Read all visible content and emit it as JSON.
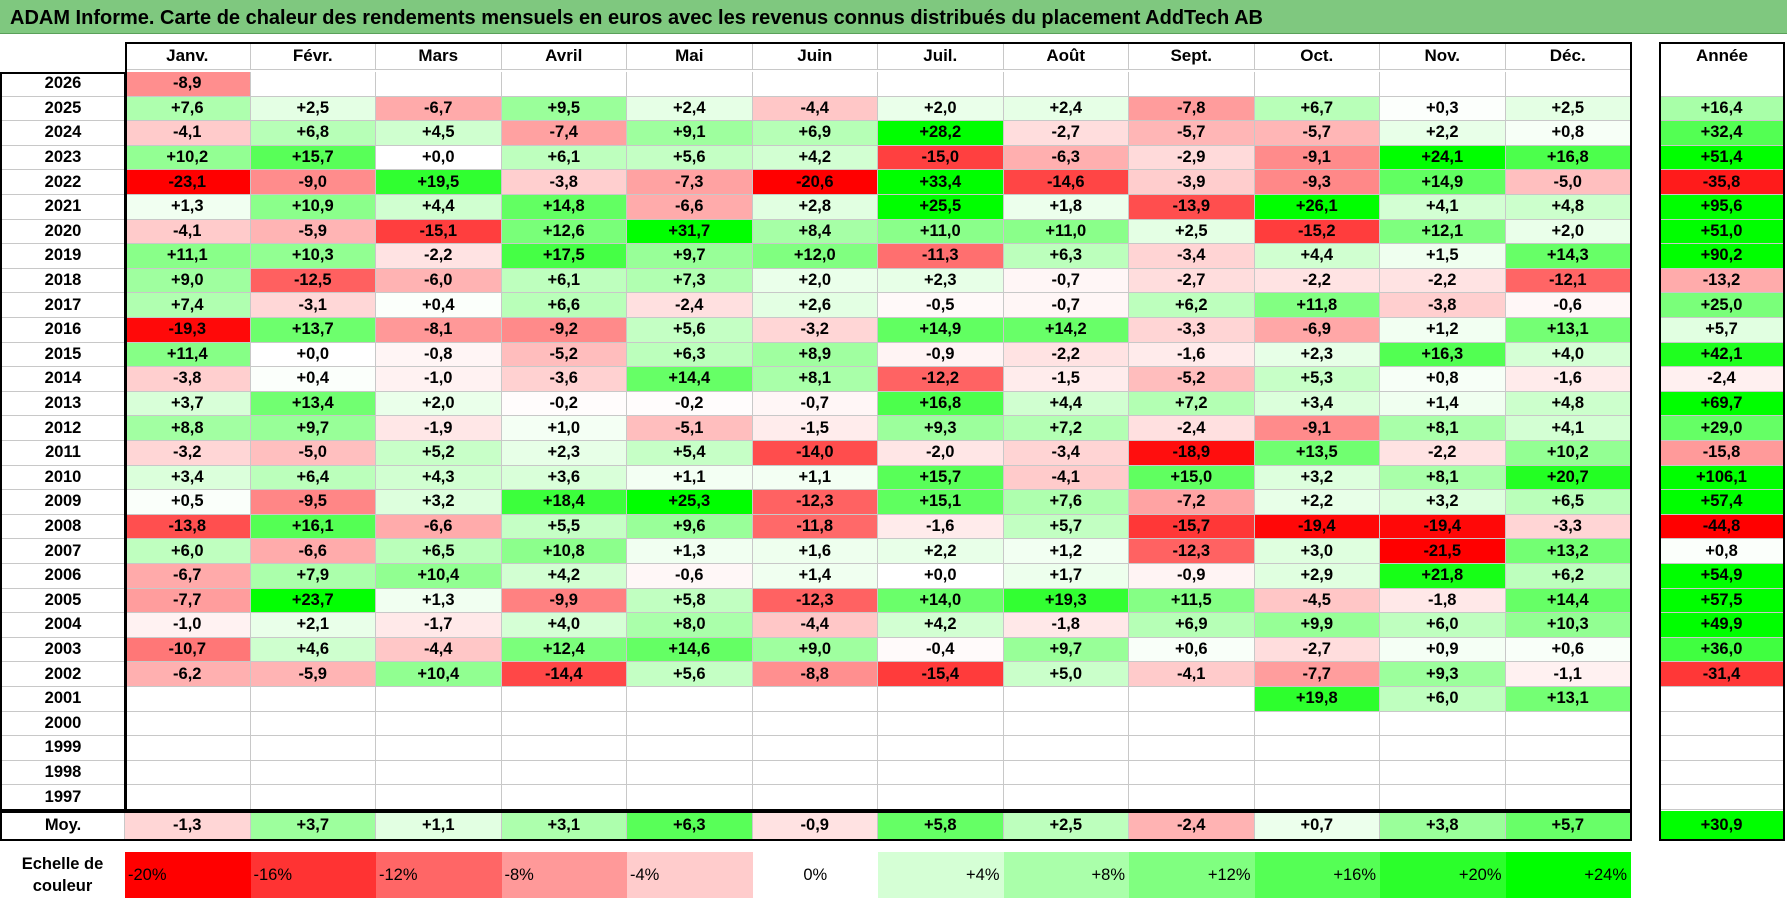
{
  "title": "ADAM Informe. Carte de chaleur des rendements mensuels en euros avec les revenus connus distribués du placement AddTech AB",
  "chart_data": {
    "type": "heatmap",
    "title": "ADAM Informe. Carte de chaleur des rendements mensuels en euros avec les revenus connus distribués du placement AddTech AB",
    "months": [
      "Janv.",
      "Févr.",
      "Mars",
      "Avril",
      "Mai",
      "Juin",
      "Juil.",
      "Août",
      "Sept.",
      "Oct.",
      "Nov.",
      "Déc."
    ],
    "annual_header": "Année",
    "rows": [
      {
        "year": "2026",
        "values": [
          "-8,9",
          "",
          "",
          "",
          "",
          "",
          "",
          "",
          "",
          "",
          "",
          ""
        ],
        "annual": ""
      },
      {
        "year": "2025",
        "values": [
          "+7,6",
          "+2,5",
          "-6,7",
          "+9,5",
          "+2,4",
          "-4,4",
          "+2,0",
          "+2,4",
          "-7,8",
          "+6,7",
          "+0,3",
          "+2,5"
        ],
        "annual": "+16,4"
      },
      {
        "year": "2024",
        "values": [
          "-4,1",
          "+6,8",
          "+4,5",
          "-7,4",
          "+9,1",
          "+6,9",
          "+28,2",
          "-2,7",
          "-5,7",
          "-5,7",
          "+2,2",
          "+0,8"
        ],
        "annual": "+32,4"
      },
      {
        "year": "2023",
        "values": [
          "+10,2",
          "+15,7",
          "+0,0",
          "+6,1",
          "+5,6",
          "+4,2",
          "-15,0",
          "-6,3",
          "-2,9",
          "-9,1",
          "+24,1",
          "+16,8"
        ],
        "annual": "+51,4"
      },
      {
        "year": "2022",
        "values": [
          "-23,1",
          "-9,0",
          "+19,5",
          "-3,8",
          "-7,3",
          "-20,6",
          "+33,4",
          "-14,6",
          "-3,9",
          "-9,3",
          "+14,9",
          "-5,0"
        ],
        "annual": "-35,8"
      },
      {
        "year": "2021",
        "values": [
          "+1,3",
          "+10,9",
          "+4,4",
          "+14,8",
          "-6,6",
          "+2,8",
          "+25,5",
          "+1,8",
          "-13,9",
          "+26,1",
          "+4,1",
          "+4,8"
        ],
        "annual": "+95,6"
      },
      {
        "year": "2020",
        "values": [
          "-4,1",
          "-5,9",
          "-15,1",
          "+12,6",
          "+31,7",
          "+8,4",
          "+11,0",
          "+11,0",
          "+2,5",
          "-15,2",
          "+12,1",
          "+2,0"
        ],
        "annual": "+51,0"
      },
      {
        "year": "2019",
        "values": [
          "+11,1",
          "+10,3",
          "-2,2",
          "+17,5",
          "+9,7",
          "+12,0",
          "-11,3",
          "+6,3",
          "-3,4",
          "+4,4",
          "+1,5",
          "+14,3"
        ],
        "annual": "+90,2"
      },
      {
        "year": "2018",
        "values": [
          "+9,0",
          "-12,5",
          "-6,0",
          "+6,1",
          "+7,3",
          "+2,0",
          "+2,3",
          "-0,7",
          "-2,7",
          "-2,2",
          "-2,2",
          "-12,1"
        ],
        "annual": "-13,2"
      },
      {
        "year": "2017",
        "values": [
          "+7,4",
          "-3,1",
          "+0,4",
          "+6,6",
          "-2,4",
          "+2,6",
          "-0,5",
          "-0,7",
          "+6,2",
          "+11,8",
          "-3,8",
          "-0,6"
        ],
        "annual": "+25,0"
      },
      {
        "year": "2016",
        "values": [
          "-19,3",
          "+13,7",
          "-8,1",
          "-9,2",
          "+5,6",
          "-3,2",
          "+14,9",
          "+14,2",
          "-3,3",
          "-6,9",
          "+1,2",
          "+13,1"
        ],
        "annual": "+5,7"
      },
      {
        "year": "2015",
        "values": [
          "+11,4",
          "+0,0",
          "-0,8",
          "-5,2",
          "+6,3",
          "+8,9",
          "-0,9",
          "-2,2",
          "-1,6",
          "+2,3",
          "+16,3",
          "+4,0"
        ],
        "annual": "+42,1"
      },
      {
        "year": "2014",
        "values": [
          "-3,8",
          "+0,4",
          "-1,0",
          "-3,6",
          "+14,4",
          "+8,1",
          "-12,2",
          "-1,5",
          "-5,2",
          "+5,3",
          "+0,8",
          "-1,6"
        ],
        "annual": "-2,4"
      },
      {
        "year": "2013",
        "values": [
          "+3,7",
          "+13,4",
          "+2,0",
          "-0,2",
          "-0,2",
          "-0,7",
          "+16,8",
          "+4,4",
          "+7,2",
          "+3,4",
          "+1,4",
          "+4,8"
        ],
        "annual": "+69,7"
      },
      {
        "year": "2012",
        "values": [
          "+8,8",
          "+9,7",
          "-1,9",
          "+1,0",
          "-5,1",
          "-1,5",
          "+9,3",
          "+7,2",
          "-2,4",
          "-9,1",
          "+8,1",
          "+4,1"
        ],
        "annual": "+29,0"
      },
      {
        "year": "2011",
        "values": [
          "-3,2",
          "-5,0",
          "+5,2",
          "+2,3",
          "+5,4",
          "-14,0",
          "-2,0",
          "-3,4",
          "-18,9",
          "+13,5",
          "-2,2",
          "+10,2"
        ],
        "annual": "-15,8"
      },
      {
        "year": "2010",
        "values": [
          "+3,4",
          "+6,4",
          "+4,3",
          "+3,6",
          "+1,1",
          "+1,1",
          "+15,7",
          "-4,1",
          "+15,0",
          "+3,2",
          "+8,1",
          "+20,7"
        ],
        "annual": "+106,1"
      },
      {
        "year": "2009",
        "values": [
          "+0,5",
          "-9,5",
          "+3,2",
          "+18,4",
          "+25,3",
          "-12,3",
          "+15,1",
          "+7,6",
          "-7,2",
          "+2,2",
          "+3,2",
          "+6,5"
        ],
        "annual": "+57,4"
      },
      {
        "year": "2008",
        "values": [
          "-13,8",
          "+16,1",
          "-6,6",
          "+5,5",
          "+9,6",
          "-11,8",
          "-1,6",
          "+5,7",
          "-15,7",
          "-19,4",
          "-19,4",
          "-3,3"
        ],
        "annual": "-44,8"
      },
      {
        "year": "2007",
        "values": [
          "+6,0",
          "-6,6",
          "+6,5",
          "+10,8",
          "+1,3",
          "+1,6",
          "+2,2",
          "+1,2",
          "-12,3",
          "+3,0",
          "-21,5",
          "+13,2"
        ],
        "annual": "+0,8"
      },
      {
        "year": "2006",
        "values": [
          "-6,7",
          "+7,9",
          "+10,4",
          "+4,2",
          "-0,6",
          "+1,4",
          "+0,0",
          "+1,7",
          "-0,9",
          "+2,9",
          "+21,8",
          "+6,2"
        ],
        "annual": "+54,9"
      },
      {
        "year": "2005",
        "values": [
          "-7,7",
          "+23,7",
          "+1,3",
          "-9,9",
          "+5,8",
          "-12,3",
          "+14,0",
          "+19,3",
          "+11,5",
          "-4,5",
          "-1,8",
          "+14,4"
        ],
        "annual": "+57,5"
      },
      {
        "year": "2004",
        "values": [
          "-1,0",
          "+2,1",
          "-1,7",
          "+4,0",
          "+8,0",
          "-4,4",
          "+4,2",
          "-1,8",
          "+6,9",
          "+9,9",
          "+6,0",
          "+10,3"
        ],
        "annual": "+49,9"
      },
      {
        "year": "2003",
        "values": [
          "-10,7",
          "+4,6",
          "-4,4",
          "+12,4",
          "+14,6",
          "+9,0",
          "-0,4",
          "+9,7",
          "+0,6",
          "-2,7",
          "+0,9",
          "+0,6"
        ],
        "annual": "+36,0"
      },
      {
        "year": "2002",
        "values": [
          "-6,2",
          "-5,9",
          "+10,4",
          "-14,4",
          "+5,6",
          "-8,8",
          "-15,4",
          "+5,0",
          "-4,1",
          "-7,7",
          "+9,3",
          "-1,1"
        ],
        "annual": "-31,4"
      },
      {
        "year": "2001",
        "values": [
          "",
          "",
          "",
          "",
          "",
          "",
          "",
          "",
          "",
          "+19,8",
          "+6,0",
          "+13,1"
        ],
        "annual": ""
      },
      {
        "year": "2000",
        "values": [
          "",
          "",
          "",
          "",
          "",
          "",
          "",
          "",
          "",
          "",
          "",
          ""
        ],
        "annual": ""
      },
      {
        "year": "1999",
        "values": [
          "",
          "",
          "",
          "",
          "",
          "",
          "",
          "",
          "",
          "",
          "",
          ""
        ],
        "annual": ""
      },
      {
        "year": "1998",
        "values": [
          "",
          "",
          "",
          "",
          "",
          "",
          "",
          "",
          "",
          "",
          "",
          ""
        ],
        "annual": ""
      },
      {
        "year": "1997",
        "values": [
          "",
          "",
          "",
          "",
          "",
          "",
          "",
          "",
          "",
          "",
          "",
          ""
        ],
        "annual": ""
      }
    ],
    "average": {
      "label": "Moy.",
      "values": [
        "-1,3",
        "+3,7",
        "+1,1",
        "+3,1",
        "+6,3",
        "-0,9",
        "+5,8",
        "+2,5",
        "-2,4",
        "+0,7",
        "+3,8",
        "+5,7"
      ],
      "annual": "+30,9"
    },
    "scale": {
      "label": "Echelle de couleur",
      "steps": [
        "-20%",
        "-16%",
        "-12%",
        "-8%",
        "-4%",
        "0%",
        "+4%",
        "+8%",
        "+12%",
        "+16%",
        "+20%",
        "+24%"
      ],
      "values": [
        -20,
        -16,
        -12,
        -8,
        -4,
        0,
        4,
        8,
        12,
        16,
        20,
        24
      ]
    }
  }
}
